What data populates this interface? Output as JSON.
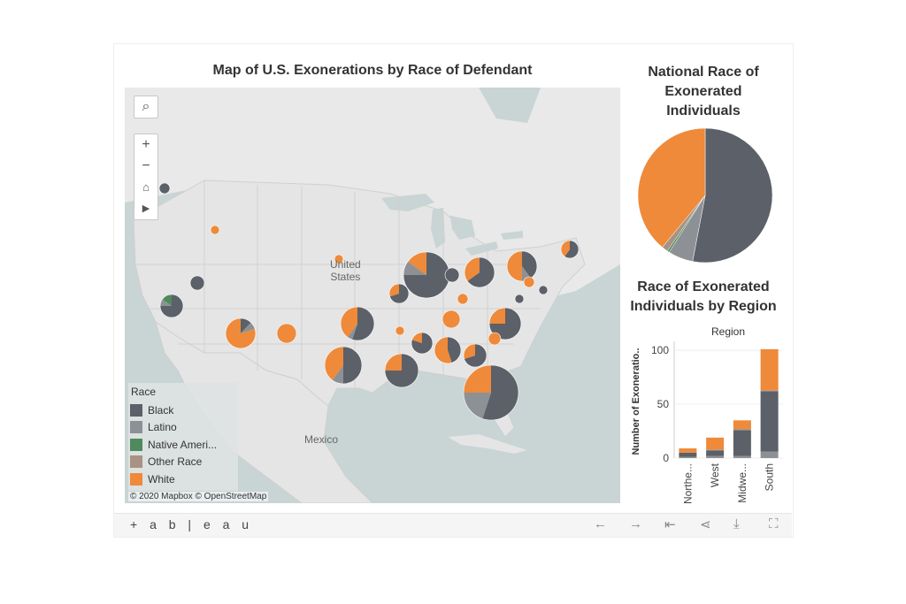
{
  "map": {
    "title": "Map of U.S. Exonerations by Race of Defendant",
    "attribution": "© 2020 Mapbox  © OpenStreetMap",
    "labels": {
      "usa_line1": "United",
      "usa_line2": "States",
      "mexico": "Mexico"
    },
    "legend_title": "Race",
    "legend": [
      {
        "label": "Black",
        "color": "#5c6068"
      },
      {
        "label": "Latino",
        "color": "#8d9195"
      },
      {
        "label": "Native Ameri...",
        "color": "#4e8a5c"
      },
      {
        "label": "Other Race",
        "color": "#a89283"
      },
      {
        "label": "White",
        "color": "#ee8a3a"
      }
    ]
  },
  "pie": {
    "title": "National Race of Exonerated Individuals"
  },
  "bar": {
    "title": "Race of Exonerated Individuals by Region"
  },
  "chart_data": [
    {
      "type": "pie",
      "title": "National Race of Exonerated Individuals",
      "slices": [
        {
          "label": "Black",
          "value": 53,
          "color": "#5c6068"
        },
        {
          "label": "Latino",
          "value": 6,
          "color": "#8d9195"
        },
        {
          "label": "Native American",
          "value": 0.5,
          "color": "#4e8a5c"
        },
        {
          "label": "Other Race",
          "value": 1.5,
          "color": "#a89283"
        },
        {
          "label": "White",
          "value": 39,
          "color": "#ee8a3a"
        }
      ]
    },
    {
      "type": "bar",
      "stacked": true,
      "title": "Race of Exonerated Individuals by Region",
      "header": "Region",
      "ylabel": "Number of Exoneratio..",
      "ylim": [
        0,
        105
      ],
      "yticks": [
        0,
        50,
        100
      ],
      "categories": [
        "Northe...",
        "West",
        "Midwe...",
        "South"
      ],
      "series": [
        {
          "name": "Latino",
          "color": "#8d9195",
          "values": [
            1,
            2,
            2,
            6
          ]
        },
        {
          "name": "Black",
          "color": "#5c6068",
          "values": [
            4,
            5,
            24,
            56
          ]
        },
        {
          "name": "Other Race",
          "color": "#a89283",
          "values": [
            0,
            1,
            1,
            1
          ]
        },
        {
          "name": "White",
          "color": "#ee8a3a",
          "values": [
            4,
            11,
            8,
            38
          ]
        }
      ]
    }
  ],
  "map_markers": [
    {
      "name": "washington",
      "radius": 6,
      "slices": [
        [
          1,
          "#5c6068"
        ]
      ]
    },
    {
      "name": "idaho",
      "radius": 5,
      "slices": [
        [
          1,
          "#ee8a3a"
        ]
      ]
    },
    {
      "name": "nevada",
      "radius": 8,
      "slices": [
        [
          1,
          "#5c6068"
        ]
      ]
    },
    {
      "name": "california",
      "radius": 13,
      "slices": [
        [
          0.75,
          "#5c6068"
        ],
        [
          0.1,
          "#8d9195"
        ],
        [
          0.15,
          "#4e8a5c"
        ]
      ]
    },
    {
      "name": "arizona",
      "radius": 17,
      "slices": [
        [
          0.12,
          "#5c6068"
        ],
        [
          0.08,
          "#8d9195"
        ],
        [
          0.8,
          "#ee8a3a"
        ]
      ]
    },
    {
      "name": "new-mexico",
      "radius": 11,
      "slices": [
        [
          1,
          "#ee8a3a"
        ]
      ]
    },
    {
      "name": "nebraska",
      "radius": 5,
      "slices": [
        [
          1,
          "#ee8a3a"
        ]
      ]
    },
    {
      "name": "oklahoma",
      "radius": 19,
      "slices": [
        [
          0.55,
          "#5c6068"
        ],
        [
          0.05,
          "#8d9195"
        ],
        [
          0.4,
          "#ee8a3a"
        ]
      ]
    },
    {
      "name": "texas",
      "radius": 21,
      "slices": [
        [
          0.5,
          "#5c6068"
        ],
        [
          0.1,
          "#8d9195"
        ],
        [
          0.4,
          "#ee8a3a"
        ]
      ]
    },
    {
      "name": "louisiana",
      "radius": 19,
      "slices": [
        [
          0.75,
          "#5c6068"
        ],
        [
          0.25,
          "#ee8a3a"
        ]
      ]
    },
    {
      "name": "illinois",
      "radius": 26,
      "slices": [
        [
          0.75,
          "#5c6068"
        ],
        [
          0.1,
          "#8d9195"
        ],
        [
          0.15,
          "#ee8a3a"
        ]
      ]
    },
    {
      "name": "missouri",
      "radius": 11,
      "slices": [
        [
          0.7,
          "#5c6068"
        ],
        [
          0.3,
          "#ee8a3a"
        ]
      ]
    },
    {
      "name": "indiana",
      "radius": 8,
      "slices": [
        [
          1,
          "#5c6068"
        ]
      ]
    },
    {
      "name": "michigan",
      "radius": 17,
      "slices": [
        [
          0.65,
          "#5c6068"
        ],
        [
          0.35,
          "#ee8a3a"
        ]
      ]
    },
    {
      "name": "ohio",
      "radius": 17,
      "slices": [
        [
          0.4,
          "#5c6068"
        ],
        [
          0.1,
          "#8d9195"
        ],
        [
          0.5,
          "#ee8a3a"
        ]
      ]
    },
    {
      "name": "new-york",
      "radius": 10,
      "slices": [
        [
          0.6,
          "#5c6068"
        ],
        [
          0.4,
          "#ee8a3a"
        ]
      ]
    },
    {
      "name": "pennsylvania",
      "radius": 6,
      "slices": [
        [
          1,
          "#ee8a3a"
        ]
      ]
    },
    {
      "name": "maryland",
      "radius": 5,
      "slices": [
        [
          1,
          "#5c6068"
        ]
      ]
    },
    {
      "name": "virginia",
      "radius": 5,
      "slices": [
        [
          1,
          "#5c6068"
        ]
      ]
    },
    {
      "name": "kentucky",
      "radius": 10,
      "slices": [
        [
          1,
          "#ee8a3a"
        ]
      ]
    },
    {
      "name": "west-virginia",
      "radius": 6,
      "slices": [
        [
          1,
          "#ee8a3a"
        ]
      ]
    },
    {
      "name": "arkansas",
      "radius": 5,
      "slices": [
        [
          1,
          "#ee8a3a"
        ]
      ]
    },
    {
      "name": "tennessee",
      "radius": 12,
      "slices": [
        [
          0.8,
          "#5c6068"
        ],
        [
          0.2,
          "#ee8a3a"
        ]
      ]
    },
    {
      "name": "mississippi",
      "radius": 15,
      "slices": [
        [
          0.45,
          "#5c6068"
        ],
        [
          0.55,
          "#ee8a3a"
        ]
      ]
    },
    {
      "name": "alabama",
      "radius": 13,
      "slices": [
        [
          0.7,
          "#5c6068"
        ],
        [
          0.3,
          "#ee8a3a"
        ]
      ]
    },
    {
      "name": "carolina",
      "radius": 18,
      "slices": [
        [
          0.75,
          "#5c6068"
        ],
        [
          0.25,
          "#ee8a3a"
        ]
      ]
    },
    {
      "name": "georgia",
      "radius": 7,
      "slices": [
        [
          1,
          "#ee8a3a"
        ]
      ]
    },
    {
      "name": "florida",
      "radius": 31,
      "slices": [
        [
          0.55,
          "#5c6068"
        ],
        [
          0.2,
          "#8d9195"
        ],
        [
          0.25,
          "#ee8a3a"
        ]
      ]
    }
  ],
  "toolbar": {
    "brand": "+ a b | e a u",
    "icons": [
      "undo-icon",
      "redo-icon",
      "revert-icon",
      "share-icon",
      "download-icon",
      "fullscreen-icon"
    ]
  }
}
